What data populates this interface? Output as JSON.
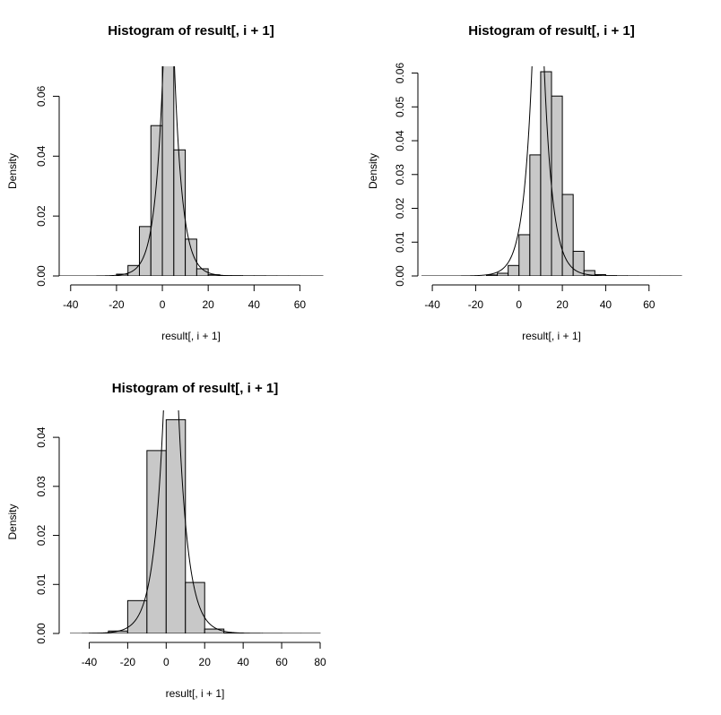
{
  "chart_data": [
    {
      "type": "bar",
      "title": "Histogram of result[, i + 1]",
      "xlabel": "result[, i + 1]",
      "ylabel": "Density",
      "x_ticks": [
        -40,
        -20,
        0,
        20,
        40,
        60
      ],
      "y_ticks": [
        0.0,
        0.02,
        0.04,
        0.06
      ],
      "y_tick_labels": [
        "0.00",
        "0.02",
        "0.04",
        "0.06"
      ],
      "xlim": [
        -45,
        70
      ],
      "ylim": [
        0,
        0.07
      ],
      "bin_edges": [
        -20,
        -15,
        -10,
        -5,
        0,
        5,
        10,
        15,
        20,
        25,
        30,
        35,
        40,
        45,
        50,
        55,
        60,
        65,
        70
      ],
      "values": [
        0.0006,
        0.0035,
        0.0165,
        0.0502,
        0.0702,
        0.0421,
        0.0123,
        0.0024,
        0.0004,
        0.0001,
        0.0001,
        5e-05,
        5e-05,
        3e-05,
        2e-05,
        2e-05,
        1e-05,
        1e-05
      ],
      "density_curve": {
        "location": 2.8,
        "scale": 3.55,
        "x_from": -45,
        "x_to": 70
      }
    },
    {
      "type": "bar",
      "title": "Histogram of result[, i + 1]",
      "xlabel": "result[, i + 1]",
      "ylabel": "Density",
      "x_ticks": [
        -40,
        -20,
        0,
        20,
        40,
        60
      ],
      "y_ticks": [
        0.0,
        0.01,
        0.02,
        0.03,
        0.04,
        0.05,
        0.06
      ],
      "y_tick_labels": [
        "0.00",
        "0.01",
        "0.02",
        "0.03",
        "0.04",
        "0.05",
        "0.06"
      ],
      "xlim": [
        -45,
        75
      ],
      "ylim": [
        0,
        0.062
      ],
      "bin_edges": [
        -15,
        -10,
        -5,
        0,
        5,
        10,
        15,
        20,
        25,
        30,
        35,
        40,
        45,
        50,
        55,
        60,
        65,
        70,
        75
      ],
      "values": [
        0.0003,
        0.0008,
        0.0031,
        0.0122,
        0.0358,
        0.0604,
        0.0532,
        0.0241,
        0.0073,
        0.0016,
        0.0004,
        0.0001,
        5e-05,
        3e-05,
        2e-05,
        1e-05,
        1e-05,
        1e-05
      ],
      "density_curve": {
        "location": 8.8,
        "scale": 4.0,
        "x_from": -45,
        "x_to": 75
      }
    },
    {
      "type": "bar",
      "title": "Histogram of result[, i + 1]",
      "xlabel": "result[, i + 1]",
      "ylabel": "Density",
      "x_ticks": [
        -40,
        -20,
        0,
        20,
        40,
        60,
        80
      ],
      "y_ticks": [
        0.0,
        0.01,
        0.02,
        0.03,
        0.04
      ],
      "y_tick_labels": [
        "0.00",
        "0.01",
        "0.02",
        "0.03",
        "0.04"
      ],
      "xlim": [
        -50,
        80
      ],
      "ylim": [
        0,
        0.0455
      ],
      "bin_edges": [
        -40,
        -30,
        -20,
        -10,
        0,
        10,
        20,
        30,
        40,
        50,
        60,
        70,
        80
      ],
      "values": [
        5e-05,
        0.0005,
        0.0067,
        0.0373,
        0.0436,
        0.0104,
        0.0009,
        0.0001,
        3e-05,
        2e-05,
        1e-05,
        1e-05
      ],
      "density_curve": {
        "location": 2.5,
        "scale": 5.15,
        "x_from": -50,
        "x_to": 80
      }
    }
  ]
}
